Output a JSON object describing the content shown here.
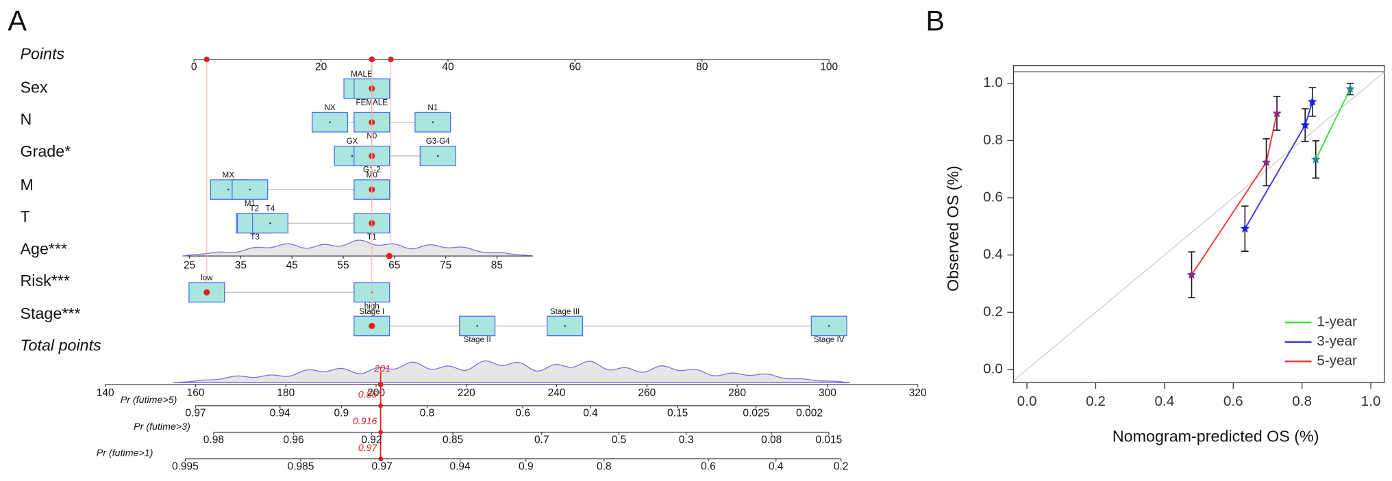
{
  "nomogram": {
    "label": "A",
    "points_axis": {
      "label": "Points",
      "xlim": [
        0,
        100
      ],
      "ticks": [
        0,
        20,
        40,
        60,
        80,
        100
      ]
    },
    "variables": [
      {
        "label": "Sex",
        "patient_points": 28,
        "levels": [
          {
            "label": "MALE",
            "value": 26.4
          },
          {
            "label": "FEMALE",
            "value": 28
          }
        ]
      },
      {
        "label": "N",
        "patient_points": 28,
        "levels": [
          {
            "label": "NX",
            "value": 21.4
          },
          {
            "label": "N0",
            "value": 28
          },
          {
            "label": "N1",
            "value": 37.6
          }
        ]
      },
      {
        "label": "Grade*",
        "patient_points": 28,
        "levels": [
          {
            "label": "GX",
            "value": 24.9
          },
          {
            "label": "G1-2",
            "value": 28
          },
          {
            "label": "G3-G4",
            "value": 38.4
          }
        ]
      },
      {
        "label": "M",
        "patient_points": 28,
        "levels": [
          {
            "label": "MX",
            "value": 5.4
          },
          {
            "label": "M1",
            "value": 8.8
          },
          {
            "label": "M0",
            "value": 28
          }
        ]
      },
      {
        "label": "T",
        "patient_points": 28,
        "levels": [
          {
            "label": "T2",
            "value": 9.5
          },
          {
            "label": "T3",
            "value": 9.6
          },
          {
            "label": "T4",
            "value": 12
          },
          {
            "label": "T1",
            "value": 28
          }
        ]
      },
      {
        "label": "Age***",
        "patient_points": 31,
        "patient_value": 64,
        "xlim": [
          24.5,
          92
        ],
        "ticks": [
          25,
          35,
          45,
          55,
          65,
          75,
          85
        ]
      },
      {
        "label": "Risk***",
        "patient_points": 2,
        "levels": [
          {
            "label": "low",
            "value": 2
          },
          {
            "label": "high",
            "value": 28
          }
        ]
      },
      {
        "label": "Stage***",
        "patient_points": 28,
        "levels": [
          {
            "label": "Stage I",
            "value": 28
          },
          {
            "label": "Stage II",
            "value": 44.6
          },
          {
            "label": "Stage III",
            "value": 58.4
          },
          {
            "label": "Stage IV",
            "value": 100
          }
        ]
      }
    ],
    "total_points": {
      "label": "Total points",
      "xlim": [
        140,
        320
      ],
      "ticks": [
        140,
        160,
        180,
        200,
        220,
        240,
        260,
        280,
        300,
        320
      ],
      "value": 201
    },
    "probabilities": [
      {
        "label": "Pr (futime>5)",
        "value": 0.86,
        "ticks": [
          {
            "value": 160,
            "label": "0.97"
          },
          {
            "value": 178.7,
            "label": "0.94"
          },
          {
            "value": 192.3,
            "label": "0.9"
          },
          {
            "value": 211.3,
            "label": "0.8"
          },
          {
            "value": 232.5,
            "label": "0.6"
          },
          {
            "value": 247.5,
            "label": "0.4"
          },
          {
            "value": 266.8,
            "label": "0.15"
          },
          {
            "value": 284.2,
            "label": "0.025"
          },
          {
            "value": 296,
            "label": "0.002"
          }
        ]
      },
      {
        "label": "Pr (futime>3)",
        "value": 0.916,
        "ticks": [
          {
            "value": 164,
            "label": "0.98"
          },
          {
            "value": 181.7,
            "label": "0.96"
          },
          {
            "value": 199,
            "label": "0.92"
          },
          {
            "value": 217,
            "label": "0.85"
          },
          {
            "value": 236.7,
            "label": "0.7"
          },
          {
            "value": 253.8,
            "label": "0.5"
          },
          {
            "value": 268.7,
            "label": "0.3"
          },
          {
            "value": 287.6,
            "label": "0.08"
          },
          {
            "value": 300.3,
            "label": "0.015"
          }
        ]
      },
      {
        "label": "Pr (futime>1)",
        "value": 0.97,
        "ticks": [
          {
            "value": 157.7,
            "label": "0.995"
          },
          {
            "value": 183.3,
            "label": "0.985"
          },
          {
            "value": 201.3,
            "label": "0.97"
          },
          {
            "value": 218.6,
            "label": "0.94"
          },
          {
            "value": 233.2,
            "label": "0.9"
          },
          {
            "value": 250.5,
            "label": "0.8"
          },
          {
            "value": 273.6,
            "label": "0.6"
          },
          {
            "value": 288.6,
            "label": "0.4"
          },
          {
            "value": 303,
            "label": "0.2"
          }
        ]
      }
    ]
  },
  "chart_data": {
    "type": "line",
    "panel_label": "B",
    "x_label": "Nomogram-predicted OS (%)",
    "y_label": "Observed OS (%)",
    "xlim": [
      -0.039,
      1.039
    ],
    "ylim": [
      -0.046,
      1.062
    ],
    "xticks": [
      {
        "value": 0,
        "label": "0.0"
      },
      0.2,
      0.4,
      0.6,
      0.8,
      {
        "value": 1,
        "label": "1.0"
      }
    ],
    "yticks": [
      {
        "value": 0,
        "label": "0.0"
      },
      0.2,
      0.4,
      0.6,
      0.8,
      {
        "value": 1,
        "label": "1.0"
      }
    ],
    "legend": "bottom-right",
    "series": [
      {
        "name": "1-year",
        "color": "#3fe03f",
        "marker_color": "#1f8f8f",
        "x": [
          0.84,
          0.94
        ],
        "values": [
          0.734,
          0.98
        ],
        "errors": [
          0.065,
          0.02
        ]
      },
      {
        "name": "3-year",
        "color": "#3a3ae6",
        "marker_color": "#1a22e0",
        "x": [
          0.634,
          0.809,
          0.83
        ],
        "values": [
          0.492,
          0.854,
          0.935
        ],
        "errors": [
          0.079,
          0.057,
          0.05
        ]
      },
      {
        "name": "5-year",
        "color": "#ee3a3a",
        "marker_color": "#8a2a8a",
        "x": [
          0.479,
          0.696,
          0.727
        ],
        "values": [
          0.331,
          0.724,
          0.895
        ],
        "errors": [
          0.08,
          0.082,
          0.059
        ]
      }
    ]
  }
}
